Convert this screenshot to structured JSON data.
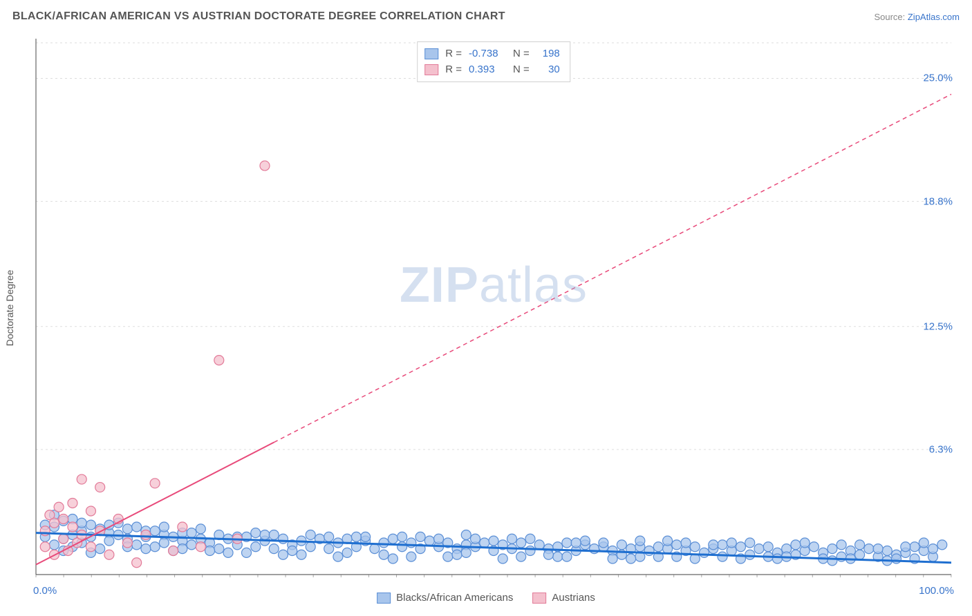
{
  "header": {
    "title": "BLACK/AFRICAN AMERICAN VS AUSTRIAN DOCTORATE DEGREE CORRELATION CHART",
    "source_prefix": "Source: ",
    "source_name": "ZipAtlas.com"
  },
  "watermark": {
    "zip": "ZIP",
    "atlas": "atlas"
  },
  "chart": {
    "type": "scatter",
    "background_color": "#ffffff",
    "grid_color": "#dddddd",
    "axis_color": "#666666",
    "tick_color": "#aaaaaa",
    "ylabel": "Doctorate Degree",
    "xlim": [
      0,
      100
    ],
    "ylim": [
      0,
      27
    ],
    "yticks": [
      {
        "v": 6.3,
        "label": "6.3%"
      },
      {
        "v": 12.5,
        "label": "12.5%"
      },
      {
        "v": 18.8,
        "label": "18.8%"
      },
      {
        "v": 25.0,
        "label": "25.0%"
      }
    ],
    "xticks_minor_step": 3.03,
    "xtick_labels": [
      {
        "v": 0,
        "label": "0.0%",
        "align": "left"
      },
      {
        "v": 100,
        "label": "100.0%",
        "align": "right"
      }
    ],
    "series": [
      {
        "id": "blacks",
        "label": "Blacks/African Americans",
        "fill": "#a8c5ec",
        "stroke": "#5b8fd6",
        "marker_r": 7,
        "marker_opacity": 0.75,
        "trend": {
          "color": "#1f6fd0",
          "width": 3,
          "x1": 0,
          "y1": 2.1,
          "x2": 100,
          "y2": 0.6,
          "dash": null,
          "solid_until_x": 100
        },
        "stats": {
          "R": "-0.738",
          "N": "198"
        },
        "points": [
          [
            1,
            1.9
          ],
          [
            2,
            2.4
          ],
          [
            2,
            1.5
          ],
          [
            3,
            2.7
          ],
          [
            3,
            1.2
          ],
          [
            4,
            2.0
          ],
          [
            5,
            2.2
          ],
          [
            5,
            1.6
          ],
          [
            6,
            1.9
          ],
          [
            6,
            2.5
          ],
          [
            7,
            1.3
          ],
          [
            8,
            2.1
          ],
          [
            8,
            1.7
          ],
          [
            9,
            2.0
          ],
          [
            10,
            1.8
          ],
          [
            10,
            2.3
          ],
          [
            11,
            1.5
          ],
          [
            12,
            1.9
          ],
          [
            12,
            2.2
          ],
          [
            13,
            1.4
          ],
          [
            14,
            2.0
          ],
          [
            14,
            1.6
          ],
          [
            15,
            1.9
          ],
          [
            16,
            1.7
          ],
          [
            16,
            2.1
          ],
          [
            17,
            1.5
          ],
          [
            18,
            1.8
          ],
          [
            19,
            1.6
          ],
          [
            20,
            2.0
          ],
          [
            20,
            1.3
          ],
          [
            21,
            1.8
          ],
          [
            22,
            1.5
          ],
          [
            23,
            1.9
          ],
          [
            24,
            1.4
          ],
          [
            25,
            1.7
          ],
          [
            25,
            2.0
          ],
          [
            26,
            1.3
          ],
          [
            27,
            1.8
          ],
          [
            28,
            1.5
          ],
          [
            29,
            1.7
          ],
          [
            30,
            1.4
          ],
          [
            31,
            1.8
          ],
          [
            32,
            1.3
          ],
          [
            33,
            1.6
          ],
          [
            34,
            1.8
          ],
          [
            35,
            1.4
          ],
          [
            36,
            1.7
          ],
          [
            37,
            1.3
          ],
          [
            38,
            1.6
          ],
          [
            39,
            1.8
          ],
          [
            40,
            1.4
          ],
          [
            41,
            1.6
          ],
          [
            42,
            1.3
          ],
          [
            43,
            1.7
          ],
          [
            44,
            1.4
          ],
          [
            45,
            1.6
          ],
          [
            46,
            1.3
          ],
          [
            47,
            1.5
          ],
          [
            47,
            2.0
          ],
          [
            48,
            1.4
          ],
          [
            49,
            1.6
          ],
          [
            50,
            1.2
          ],
          [
            51,
            1.5
          ],
          [
            52,
            1.3
          ],
          [
            53,
            1.6
          ],
          [
            54,
            1.2
          ],
          [
            55,
            1.5
          ],
          [
            56,
            1.3
          ],
          [
            57,
            1.4
          ],
          [
            58,
            1.6
          ],
          [
            59,
            1.2
          ],
          [
            60,
            1.5
          ],
          [
            61,
            1.3
          ],
          [
            62,
            1.4
          ],
          [
            63,
            1.2
          ],
          [
            64,
            1.5
          ],
          [
            65,
            1.3
          ],
          [
            66,
            1.4
          ],
          [
            66,
            1.7
          ],
          [
            67,
            1.2
          ],
          [
            68,
            1.4
          ],
          [
            69,
            1.3
          ],
          [
            70,
            1.5
          ],
          [
            71,
            1.2
          ],
          [
            72,
            1.4
          ],
          [
            73,
            1.1
          ],
          [
            74,
            1.3
          ],
          [
            75,
            1.5
          ],
          [
            76,
            1.2
          ],
          [
            77,
            1.4
          ],
          [
            78,
            1.0
          ],
          [
            79,
            1.3
          ],
          [
            80,
            1.4
          ],
          [
            81,
            1.1
          ],
          [
            82,
            1.3
          ],
          [
            83,
            1.0
          ],
          [
            84,
            1.2
          ],
          [
            85,
            1.4
          ],
          [
            86,
            1.1
          ],
          [
            87,
            1.3
          ],
          [
            88,
            0.9
          ],
          [
            89,
            1.2
          ],
          [
            90,
            1.0
          ],
          [
            91,
            1.3
          ],
          [
            92,
            0.9
          ],
          [
            93,
            1.2
          ],
          [
            94,
            1.0
          ],
          [
            95,
            1.1
          ],
          [
            96,
            0.8
          ],
          [
            97,
            1.2
          ],
          [
            97,
            1.6
          ],
          [
            98,
            0.9
          ],
          [
            99,
            1.5
          ],
          [
            2,
            3.0
          ],
          [
            4,
            2.8
          ],
          [
            6,
            1.1
          ],
          [
            9,
            2.6
          ],
          [
            11,
            2.4
          ],
          [
            13,
            2.2
          ],
          [
            15,
            1.2
          ],
          [
            18,
            2.3
          ],
          [
            21,
            1.1
          ],
          [
            24,
            2.1
          ],
          [
            27,
            1.0
          ],
          [
            30,
            2.0
          ],
          [
            33,
            0.9
          ],
          [
            36,
            1.9
          ],
          [
            39,
            0.8
          ],
          [
            42,
            1.9
          ],
          [
            45,
            0.9
          ],
          [
            48,
            1.8
          ],
          [
            51,
            0.8
          ],
          [
            54,
            1.8
          ],
          [
            57,
            0.9
          ],
          [
            60,
            1.7
          ],
          [
            63,
            0.8
          ],
          [
            66,
            0.9
          ],
          [
            69,
            1.7
          ],
          [
            72,
            0.8
          ],
          [
            75,
            0.9
          ],
          [
            78,
            1.6
          ],
          [
            81,
            0.8
          ],
          [
            84,
            1.6
          ],
          [
            87,
            0.7
          ],
          [
            90,
            1.5
          ],
          [
            93,
            0.7
          ],
          [
            96,
            1.4
          ],
          [
            3,
            1.8
          ],
          [
            7,
            2.3
          ],
          [
            12,
            1.3
          ],
          [
            17,
            2.1
          ],
          [
            22,
            1.9
          ],
          [
            28,
            1.2
          ],
          [
            34,
            1.1
          ],
          [
            40,
            1.9
          ],
          [
            46,
            1.0
          ],
          [
            52,
            1.8
          ],
          [
            58,
            0.9
          ],
          [
            64,
            1.0
          ],
          [
            70,
            0.9
          ],
          [
            76,
            1.6
          ],
          [
            82,
            0.9
          ],
          [
            88,
            1.5
          ],
          [
            94,
            0.8
          ],
          [
            1,
            2.5
          ],
          [
            4,
            1.4
          ],
          [
            8,
            2.5
          ],
          [
            14,
            2.4
          ],
          [
            19,
            1.2
          ],
          [
            26,
            2.0
          ],
          [
            32,
            1.9
          ],
          [
            38,
            1.0
          ],
          [
            44,
            1.8
          ],
          [
            50,
            1.7
          ],
          [
            56,
            1.0
          ],
          [
            62,
            1.6
          ],
          [
            68,
            0.9
          ],
          [
            74,
            1.5
          ],
          [
            80,
            0.9
          ],
          [
            86,
            0.8
          ],
          [
            92,
            1.3
          ],
          [
            98,
            1.3
          ],
          [
            5,
            2.6
          ],
          [
            10,
            1.4
          ],
          [
            16,
            1.3
          ],
          [
            23,
            1.1
          ],
          [
            29,
            1.0
          ],
          [
            35,
            1.9
          ],
          [
            41,
            0.9
          ],
          [
            47,
            1.1
          ],
          [
            53,
            0.9
          ],
          [
            59,
            1.6
          ],
          [
            65,
            0.8
          ],
          [
            71,
            1.6
          ],
          [
            77,
            0.8
          ],
          [
            83,
            1.5
          ],
          [
            89,
            0.8
          ],
          [
            95,
            1.4
          ]
        ]
      },
      {
        "id": "austrians",
        "label": "Austrians",
        "fill": "#f4c0cd",
        "stroke": "#e27a98",
        "marker_r": 7,
        "marker_opacity": 0.75,
        "trend": {
          "color": "#e84a7a",
          "width": 2,
          "x1": 0,
          "y1": 0.5,
          "x2": 100,
          "y2": 24.2,
          "dash": "6,5",
          "solid_until_x": 26
        },
        "stats": {
          "R": "0.393",
          "N": "30"
        },
        "points": [
          [
            1,
            2.2
          ],
          [
            1,
            1.4
          ],
          [
            1.5,
            3.0
          ],
          [
            2,
            2.6
          ],
          [
            2,
            1.0
          ],
          [
            2.5,
            3.4
          ],
          [
            3,
            1.8
          ],
          [
            3,
            2.8
          ],
          [
            3.5,
            1.2
          ],
          [
            4,
            2.4
          ],
          [
            4,
            3.6
          ],
          [
            4.5,
            1.6
          ],
          [
            5,
            4.8
          ],
          [
            5,
            2.0
          ],
          [
            6,
            1.4
          ],
          [
            6,
            3.2
          ],
          [
            7,
            2.2
          ],
          [
            7,
            4.4
          ],
          [
            8,
            1.0
          ],
          [
            9,
            2.8
          ],
          [
            10,
            1.6
          ],
          [
            11,
            0.6
          ],
          [
            12,
            2.0
          ],
          [
            13,
            4.6
          ],
          [
            15,
            1.2
          ],
          [
            16,
            2.4
          ],
          [
            18,
            1.4
          ],
          [
            20,
            10.8
          ],
          [
            22,
            1.8
          ],
          [
            25,
            20.6
          ]
        ]
      }
    ],
    "legend_top": [
      {
        "series": "blacks"
      },
      {
        "series": "austrians"
      }
    ],
    "legend_bottom": [
      {
        "series": "blacks"
      },
      {
        "series": "austrians"
      }
    ]
  }
}
